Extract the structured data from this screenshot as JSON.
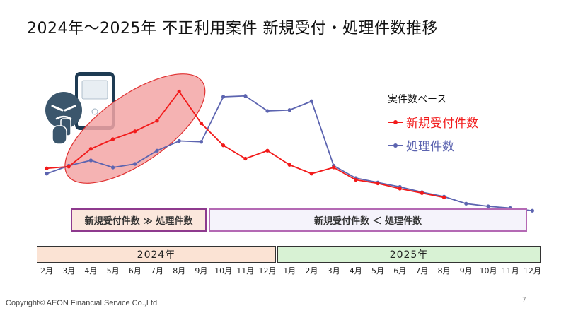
{
  "title": "2024年～2025年 不正利用案件 新規受付・処理件数推移",
  "colors": {
    "new": "#f21a1a",
    "processed": "#5c64b0",
    "ellipse_fill": "#f3a6a6",
    "ellipse_stroke": "#e03030"
  },
  "legend": {
    "basis": "実件数ベース",
    "new_label": "新規受付件数",
    "processed_label": "処理件数"
  },
  "bands": {
    "left_text": "新規受付件数 ≫ 処理件数",
    "right_text": "新規受付件数 ＜ 処理件数"
  },
  "years": {
    "y2024": "2024年",
    "y2025": "2025年"
  },
  "footer": "Copyright© AEON Financial Service Co.,Ltd",
  "page_number": "7",
  "chart_data": {
    "type": "line",
    "x": [
      "2月",
      "3月",
      "4月",
      "5月",
      "6月",
      "7月",
      "8月",
      "9月",
      "10月",
      "11月",
      "12月",
      "1月",
      "2月",
      "3月",
      "4月",
      "5月",
      "6月",
      "7月",
      "8月",
      "9月",
      "10月",
      "11月",
      "12月"
    ],
    "series": [
      {
        "name": "新規受付件数",
        "values": [
          51,
          53,
          73,
          84,
          93,
          105,
          138,
          102,
          77,
          62,
          71,
          55,
          45,
          52,
          38,
          34,
          28,
          23,
          18,
          null,
          null,
          null,
          null
        ]
      },
      {
        "name": "処理件数",
        "values": [
          45,
          54,
          60,
          52,
          56,
          71,
          82,
          81,
          132,
          133,
          116,
          117,
          127,
          54,
          40,
          35,
          30,
          24,
          19,
          11,
          8,
          6,
          3
        ]
      }
    ],
    "ylim": [
      0,
      160
    ],
    "grid": false,
    "legend_position": "right"
  }
}
